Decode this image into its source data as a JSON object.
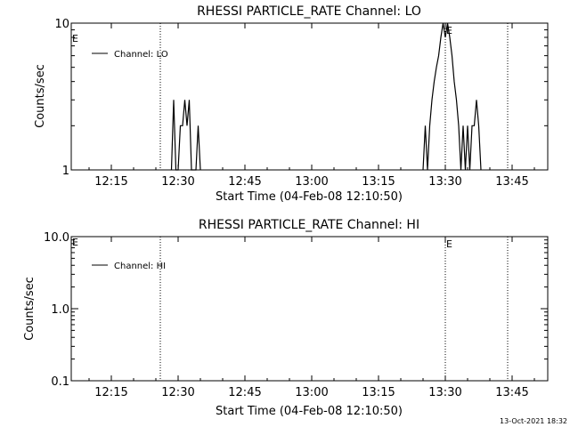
{
  "timestamp": "13-Oct-2021 18:32",
  "chart_data": [
    {
      "type": "line",
      "title": "RHESSI PARTICLE_RATE Channel: LO",
      "xlabel": "Start Time (04-Feb-08 12:10:50)",
      "ylabel": "Counts/sec",
      "yscale": "log",
      "ylim": [
        1,
        10
      ],
      "yticks": [
        "1",
        "10"
      ],
      "xlim": [
        "12:06",
        "13:53"
      ],
      "xticks": [
        "12:15",
        "12:30",
        "12:45",
        "13:00",
        "13:15",
        "13:30",
        "13:45"
      ],
      "grid": false,
      "legend_position": "top-left",
      "event_lines": [
        {
          "time": "12:26",
          "label": ""
        },
        {
          "time": "13:30",
          "label": "E"
        },
        {
          "time": "13:44",
          "label": ""
        }
      ],
      "corner_label": "E",
      "series": [
        {
          "name": "Channel: LO",
          "points": [
            [
              "12:28.5",
              1
            ],
            [
              "12:29",
              3
            ],
            [
              "12:29.5",
              1
            ],
            [
              "12:30",
              1
            ],
            [
              "12:30.5",
              2
            ],
            [
              "12:31",
              2
            ],
            [
              "12:31.5",
              3
            ],
            [
              "12:32",
              2
            ],
            [
              "12:32.5",
              3
            ],
            [
              "12:33",
              1
            ],
            [
              "12:34",
              1
            ],
            [
              "12:34.5",
              2
            ],
            [
              "12:35",
              1
            ],
            [
              "13:25",
              1
            ],
            [
              "13:25.5",
              2
            ],
            [
              "13:26",
              1
            ],
            [
              "13:26.5",
              2
            ],
            [
              "13:27",
              3
            ],
            [
              "13:27.5",
              4
            ],
            [
              "13:28",
              5
            ],
            [
              "13:28.5",
              6
            ],
            [
              "13:29",
              8
            ],
            [
              "13:29.5",
              10
            ],
            [
              "13:30",
              8
            ],
            [
              "13:30.5",
              10
            ],
            [
              "13:31",
              8
            ],
            [
              "13:31.5",
              6
            ],
            [
              "13:32",
              4
            ],
            [
              "13:32.5",
              3
            ],
            [
              "13:33",
              2
            ],
            [
              "13:33.5",
              1
            ],
            [
              "13:34",
              2
            ],
            [
              "13:34.5",
              1
            ],
            [
              "13:35",
              2
            ],
            [
              "13:35.5",
              1
            ],
            [
              "13:36",
              2
            ],
            [
              "13:36.5",
              2
            ],
            [
              "13:37",
              3
            ],
            [
              "13:37.5",
              2
            ],
            [
              "13:38",
              1
            ]
          ]
        }
      ]
    },
    {
      "type": "line",
      "title": "RHESSI PARTICLE_RATE Channel: HI",
      "xlabel": "Start Time (04-Feb-08 12:10:50)",
      "ylabel": "Counts/sec",
      "yscale": "log",
      "ylim": [
        0.1,
        10
      ],
      "yticks": [
        "0.1",
        "1.0",
        "10.0"
      ],
      "xlim": [
        "12:06",
        "13:53"
      ],
      "xticks": [
        "12:15",
        "12:30",
        "12:45",
        "13:00",
        "13:15",
        "13:30",
        "13:45"
      ],
      "grid": false,
      "legend_position": "top-left",
      "event_lines": [
        {
          "time": "12:26",
          "label": ""
        },
        {
          "time": "13:30",
          "label": "E"
        },
        {
          "time": "13:44",
          "label": ""
        }
      ],
      "corner_label": "E",
      "series": [
        {
          "name": "Channel: HI",
          "points": []
        }
      ]
    }
  ]
}
